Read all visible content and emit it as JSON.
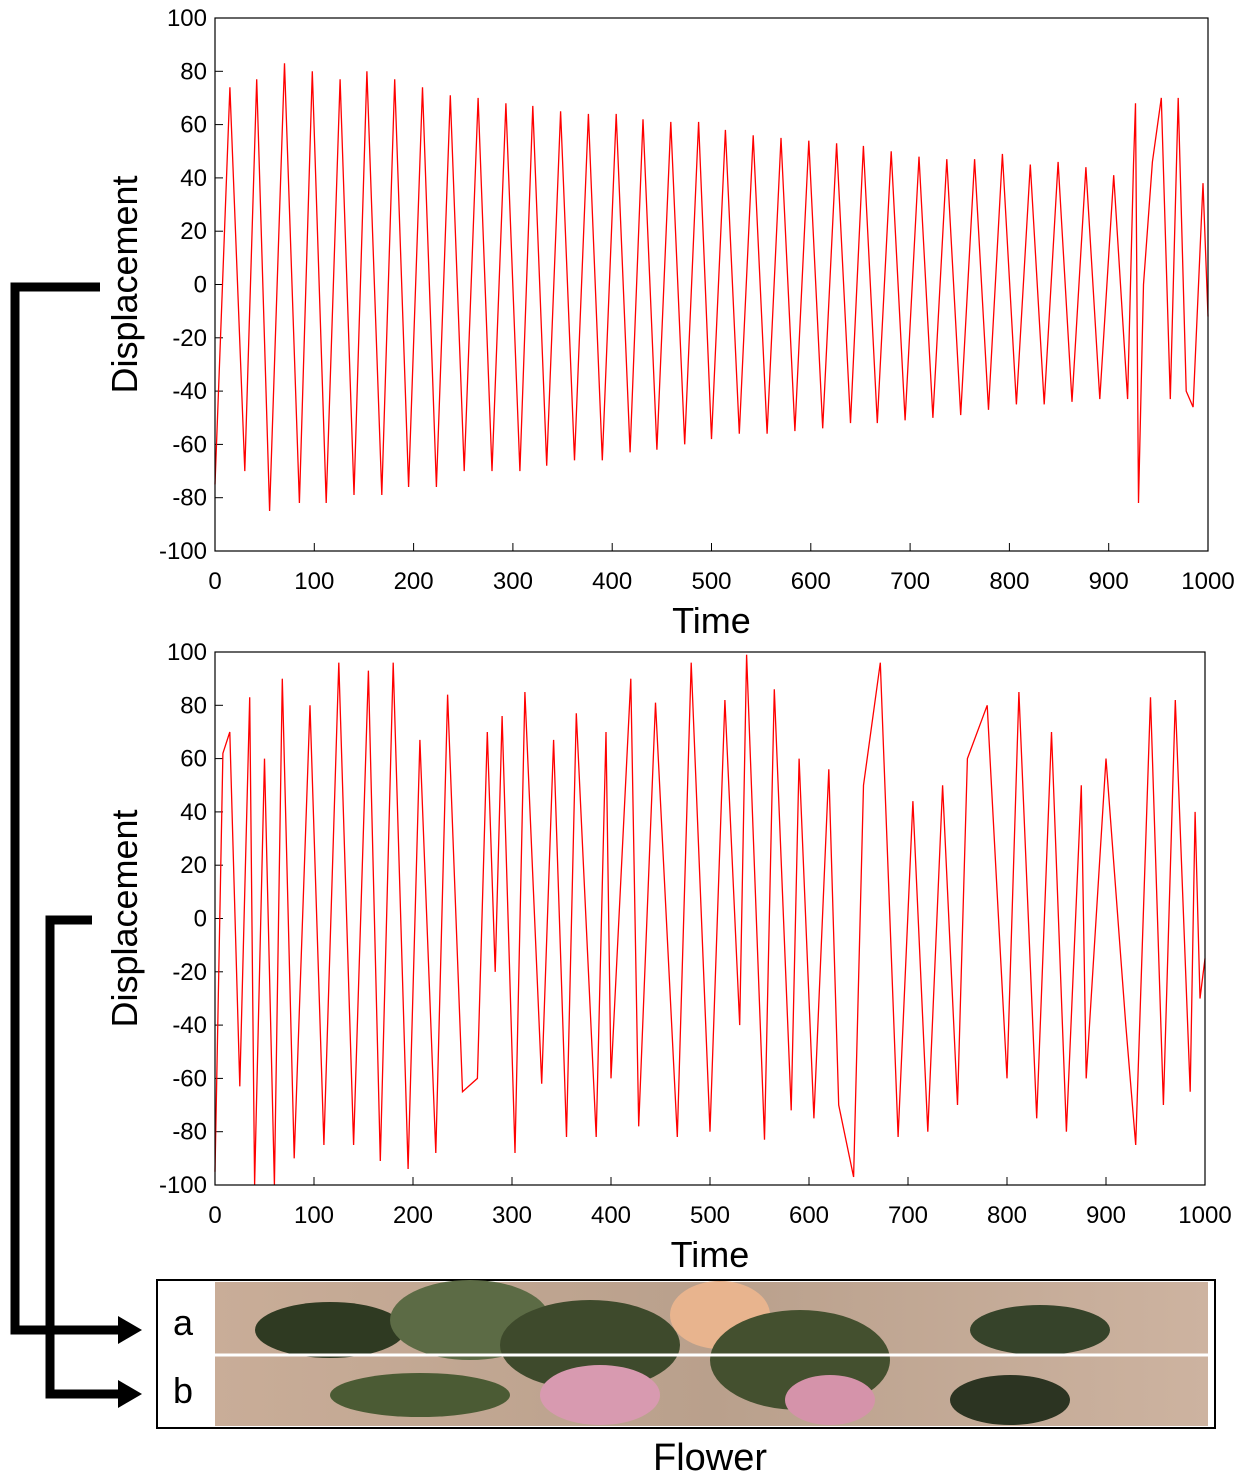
{
  "chart_data": [
    {
      "type": "line",
      "xlabel": "Time",
      "ylabel": "Displacement",
      "x": [
        0,
        15,
        30,
        42,
        55,
        70,
        85,
        98,
        112,
        126,
        140,
        153,
        168,
        181,
        195,
        209,
        223,
        237,
        251,
        265,
        279,
        293,
        307,
        320,
        334,
        348,
        362,
        376,
        390,
        404,
        418,
        431,
        445,
        459,
        473,
        487,
        500,
        514,
        528,
        542,
        556,
        570,
        584,
        598,
        612,
        626,
        640,
        653,
        667,
        681,
        695,
        709,
        723,
        737,
        751,
        765,
        779,
        793,
        807,
        821,
        835,
        849,
        863,
        877,
        891,
        905,
        919,
        925,
        927,
        930,
        935,
        944,
        953,
        962,
        970,
        978,
        985,
        995,
        1000
      ],
      "series": [
        {
          "color": "#ff0000",
          "values": [
            -75,
            74,
            -70,
            77,
            -85,
            83,
            -82,
            80,
            -82,
            77,
            -79,
            80,
            -79,
            77,
            -76,
            74,
            -76,
            71,
            -70,
            70,
            -70,
            68,
            -70,
            67,
            -68,
            65,
            -66,
            64,
            -66,
            64,
            -63,
            62,
            -62,
            61,
            -60,
            61,
            -58,
            58,
            -56,
            56,
            -56,
            55,
            -55,
            54,
            -54,
            53,
            -52,
            52,
            -52,
            50,
            -51,
            48,
            -50,
            47,
            -49,
            47,
            -47,
            49,
            -45,
            45,
            -45,
            46,
            -44,
            44,
            -43,
            41,
            -43,
            45,
            68,
            -82,
            0,
            46,
            70,
            -43,
            70,
            -40,
            -46,
            38,
            -12
          ]
        }
      ],
      "xlim": [
        0,
        1000
      ],
      "ylim": [
        -100,
        100
      ],
      "xticks": [
        0,
        100,
        200,
        300,
        400,
        500,
        600,
        700,
        800,
        900,
        1000
      ],
      "yticks": [
        -100,
        -80,
        -60,
        -40,
        -20,
        0,
        20,
        40,
        60,
        80,
        100
      ]
    },
    {
      "type": "line",
      "xlabel": "Time",
      "ylabel": "Displacement",
      "x": [
        0,
        8,
        15,
        25,
        35,
        40,
        50,
        60,
        68,
        80,
        96,
        110,
        125,
        140,
        155,
        167,
        180,
        195,
        207,
        223,
        235,
        250,
        265,
        275,
        283,
        290,
        303,
        313,
        330,
        342,
        355,
        365,
        385,
        395,
        400,
        420,
        428,
        445,
        467,
        481,
        500,
        515,
        530,
        537,
        555,
        565,
        582,
        590,
        605,
        620,
        630,
        645,
        655,
        672,
        690,
        705,
        720,
        735,
        750,
        760,
        780,
        800,
        812,
        830,
        845,
        860,
        875,
        880,
        900,
        920,
        930,
        945,
        958,
        970,
        985,
        990,
        995,
        1000
      ],
      "series": [
        {
          "color": "#ff0000",
          "values": [
            -95,
            62,
            70,
            -63,
            83,
            -100,
            60,
            -100,
            90,
            -90,
            80,
            -85,
            96,
            -85,
            93,
            -91,
            96,
            -94,
            67,
            -88,
            84,
            -65,
            -60,
            70,
            -20,
            76,
            -88,
            85,
            -62,
            67,
            -82,
            77,
            -82,
            70,
            -60,
            90,
            -78,
            81,
            -82,
            96,
            -80,
            82,
            -40,
            99,
            -83,
            86,
            -72,
            60,
            -75,
            56,
            -70,
            -97,
            50,
            96,
            -82,
            44,
            -80,
            50,
            -70,
            60,
            80,
            -60,
            85,
            -75,
            70,
            -80,
            50,
            -60,
            60,
            -40,
            -85,
            83,
            -70,
            82,
            -65,
            40,
            -30,
            -15
          ]
        }
      ],
      "xlim": [
        0,
        1000
      ],
      "ylim": [
        -100,
        100
      ],
      "xticks": [
        0,
        100,
        200,
        300,
        400,
        500,
        600,
        700,
        800,
        900,
        1000
      ],
      "yticks": [
        -100,
        -80,
        -60,
        -40,
        -20,
        0,
        20,
        40,
        60,
        80,
        100
      ]
    }
  ],
  "image_panel": {
    "labels": [
      "a",
      "b"
    ],
    "caption": "Flower"
  }
}
